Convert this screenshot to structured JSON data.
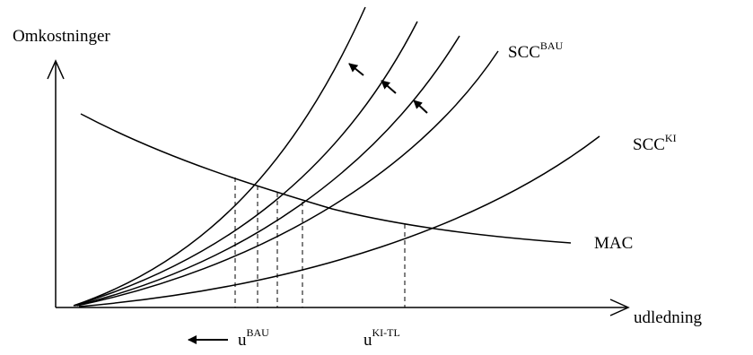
{
  "axes": {
    "y_label": "Omkostninger",
    "x_label": "udledning"
  },
  "curves": {
    "scc_bau": {
      "base": "SCC",
      "sup": "BAU"
    },
    "scc_ki": {
      "base": "SCC",
      "sup": "KI"
    },
    "mac": {
      "label": "MAC"
    }
  },
  "markers": {
    "u_bau": {
      "base": "u",
      "sup": "BAU"
    },
    "u_ki_tl": {
      "base": "u",
      "sup": "KI-TL"
    }
  }
}
